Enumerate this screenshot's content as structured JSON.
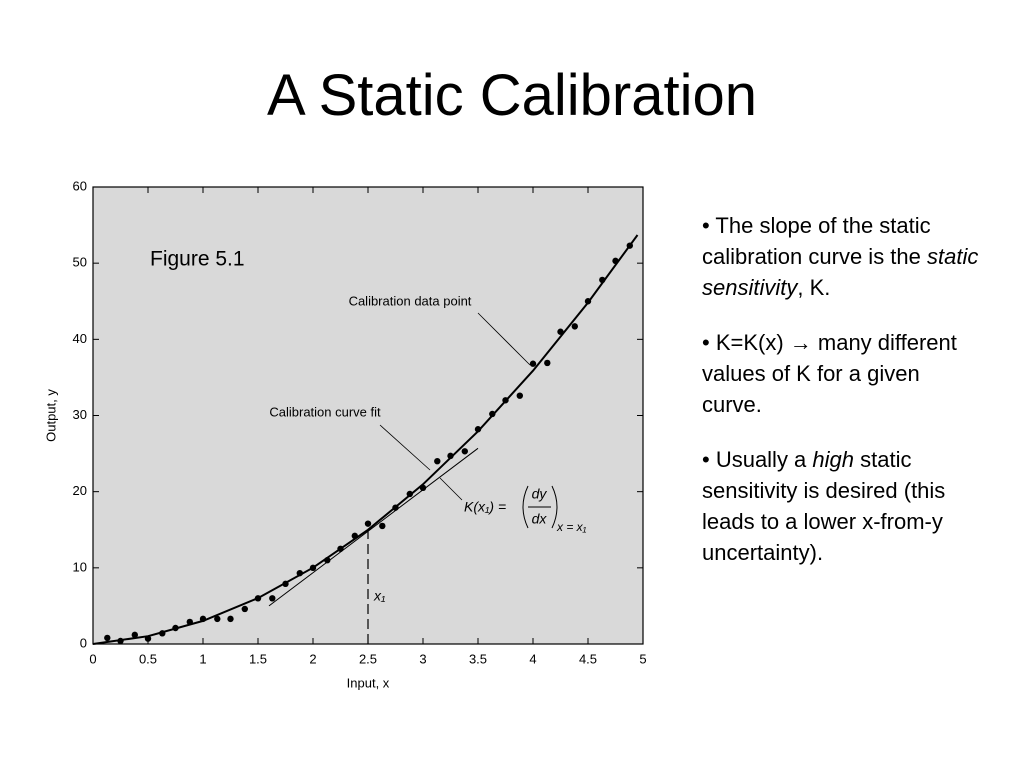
{
  "slide": {
    "title": "A Static Calibration",
    "bullets": [
      [
        {
          "text": "• The slope of the static calibration curve is the "
        },
        {
          "text": "static sensitivity",
          "italic": true
        },
        {
          "text": ", K."
        }
      ],
      [
        {
          "text": "• K=K(x) → many different values of K for a given curve."
        }
      ],
      [
        {
          "text": "• Usually a "
        },
        {
          "text": "high",
          "italic": true
        },
        {
          "text": " static sensitivity is desired (this leads to a lower x-from-y uncertainty)."
        }
      ]
    ]
  },
  "chart_data": {
    "type": "scatter",
    "title": "Figure 5.1",
    "xlabel": "Input, x",
    "ylabel": "Output, y",
    "xlim": [
      0,
      5
    ],
    "ylim": [
      0,
      60
    ],
    "xticks": [
      0,
      0.5,
      1,
      1.5,
      2,
      2.5,
      3,
      3.5,
      4,
      4.5,
      5
    ],
    "yticks": [
      0,
      10,
      20,
      30,
      40,
      50,
      60
    ],
    "background": "#d9d9d9",
    "series": [
      {
        "color": "#000000",
        "x": [
          0.13,
          0.25,
          0.38,
          0.5,
          0.63,
          0.75,
          0.88,
          1.0,
          1.13,
          1.25,
          1.38,
          1.5,
          1.63,
          1.75,
          1.88,
          2.0,
          2.13,
          2.25,
          2.38,
          2.5,
          2.63,
          2.75,
          2.88,
          3.0,
          3.13,
          3.25,
          3.38,
          3.5,
          3.63,
          3.75,
          3.88,
          4.0,
          4.13,
          4.25,
          4.38,
          4.5,
          4.63,
          4.75,
          4.88
        ],
        "values": [
          0.8,
          0.4,
          1.2,
          0.7,
          1.4,
          2.1,
          2.9,
          3.3,
          3.3,
          3.3,
          4.6,
          6.0,
          6.0,
          7.9,
          9.3,
          10.0,
          11.0,
          12.5,
          14.2,
          15.8,
          15.5,
          17.9,
          19.7,
          20.5,
          24.0,
          24.7,
          25.3,
          28.2,
          30.2,
          32.0,
          32.6,
          36.8,
          36.9,
          41.0,
          41.7,
          45.0,
          47.8,
          50.3,
          52.3
        ]
      }
    ],
    "fit": {
      "x": [
        0,
        0.5,
        1,
        1.5,
        2,
        2.5,
        3,
        3.5,
        4,
        4.5,
        4.95
      ],
      "values": [
        0,
        1.02,
        3.03,
        6.03,
        10.02,
        15,
        20.97,
        27.93,
        35.88,
        44.82,
        53.7
      ]
    },
    "tangent": {
      "x": [
        1.6,
        3.5
      ],
      "values": [
        5,
        25.7
      ]
    },
    "marker": {
      "x": 2.5,
      "value": 15,
      "label": "x₁"
    },
    "annotations": [
      "Calibration data point",
      "Calibration curve fit"
    ],
    "formula": {
      "lhs": "K(x₁) =",
      "numerator": "dy",
      "denominator": "dx",
      "subscript": "x = x₁"
    }
  }
}
